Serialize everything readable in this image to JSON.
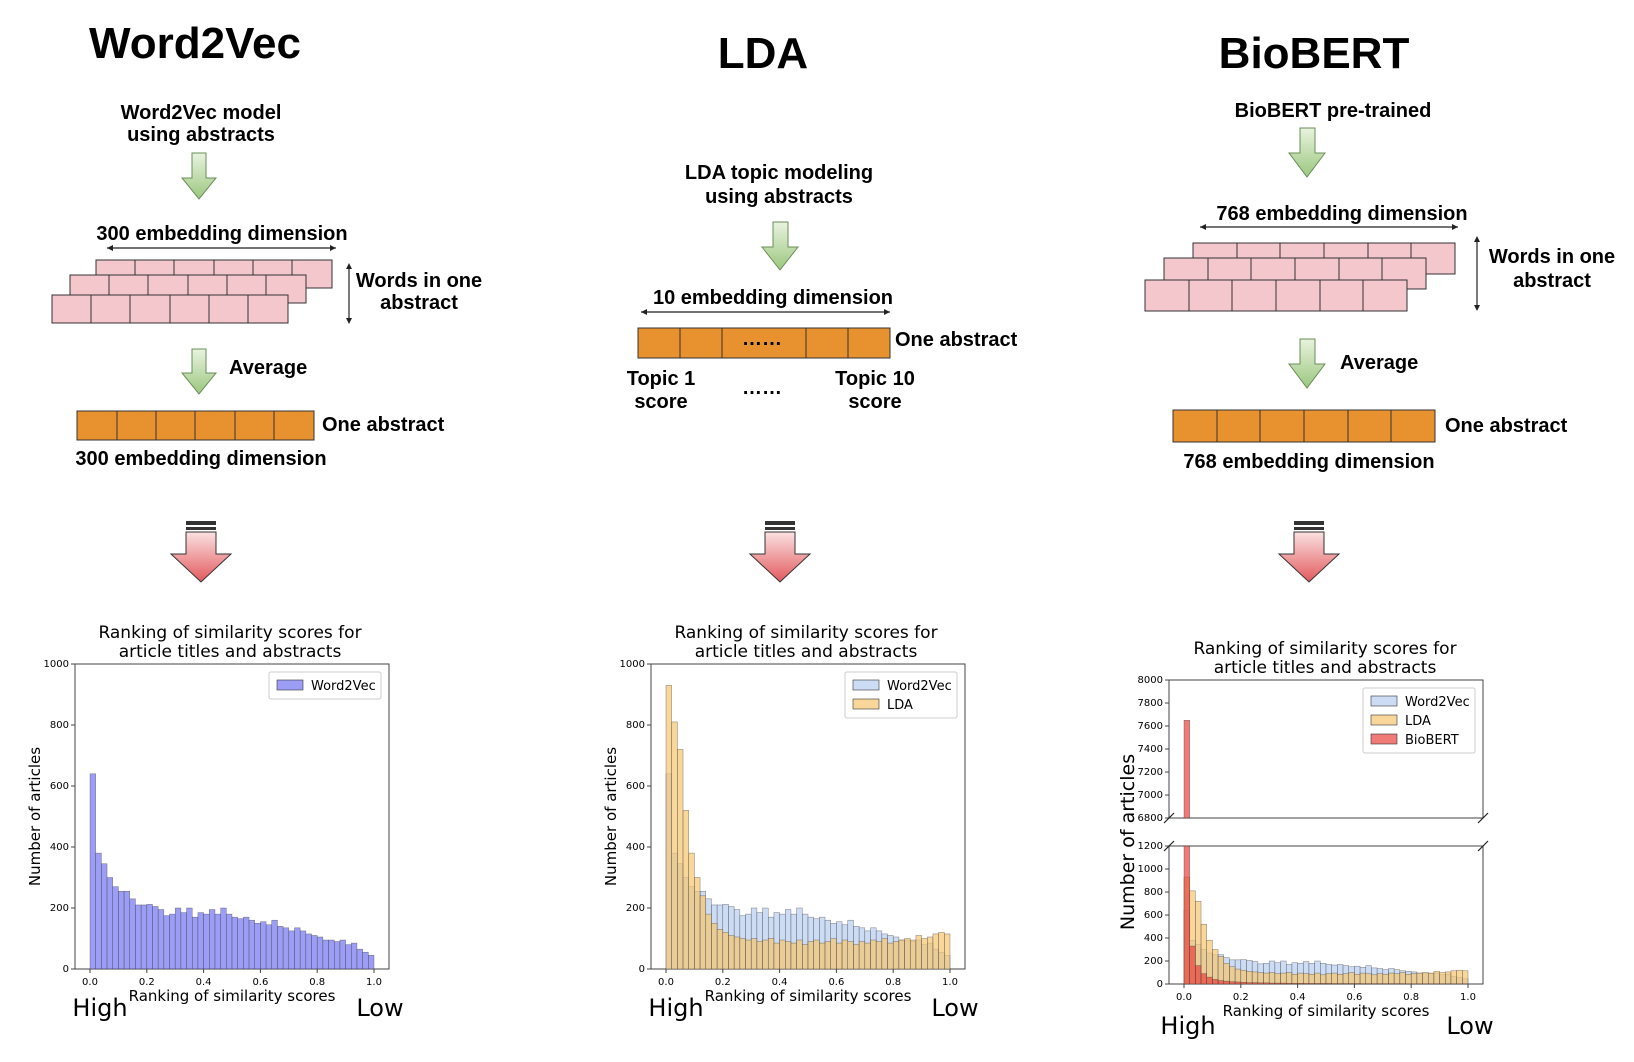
{
  "panels": {
    "word2vec": {
      "title": "Word2Vec",
      "model_line1": "Word2Vec model",
      "model_line2": "using abstracts",
      "dim_label_top": "300 embedding dimension",
      "words_line1": "Words in one",
      "words_line2": "abstract",
      "average": "Average",
      "one_abstract": "One abstract",
      "dim_label_bottom": "300 embedding dimension"
    },
    "lda": {
      "title": "LDA",
      "model_line1": "LDA topic modeling",
      "model_line2": "using abstracts",
      "dim_label": "10 embedding dimension",
      "ellipsis": "……",
      "one_abstract": "One abstract",
      "topic1_line1": "Topic 1",
      "topic1_line2": "score",
      "dots": "……",
      "topic10_line1": "Topic 10",
      "topic10_line2": "score"
    },
    "biobert": {
      "title": "BioBERT",
      "model_line1": "BioBERT pre-trained",
      "dim_label_top": "768 embedding dimension",
      "words_line1": "Words in one",
      "words_line2": "abstract",
      "average": "Average",
      "one_abstract": "One abstract",
      "dim_label_bottom": "768 embedding dimension"
    }
  },
  "colors": {
    "pink_cell": "#f4c7cc",
    "orange_cell": "#e8912f",
    "green_arrow": "#b5d49b",
    "red_arrow": "#e46a6e",
    "word2vec": "#7b7cf0",
    "word2vec_light": "#bcd0f2",
    "lda": "#f6c56f",
    "biobert": "#e8413c"
  },
  "chart_data": [
    {
      "type": "bar",
      "title": "Ranking of similarity scores for article titles and abstracts",
      "title_line1": "Ranking of similarity scores for",
      "title_line2": "article titles and abstracts",
      "xlabel": "Ranking of similarity scores",
      "ylabel": "Number of articles",
      "xlim": [
        0,
        1.0
      ],
      "ylim": [
        0,
        1000
      ],
      "yticks": [
        "0",
        "200",
        "400",
        "600",
        "800",
        "1000"
      ],
      "xticks": [
        "0.0",
        "0.2",
        "0.4",
        "0.6",
        "0.8",
        "1.0"
      ],
      "x_left_note": "High",
      "x_right_note": "Low",
      "legend_position": "top-right",
      "bins": 50,
      "series": [
        {
          "name": "Word2Vec",
          "values": [
            640,
            380,
            345,
            300,
            270,
            255,
            255,
            230,
            210,
            210,
            212,
            205,
            195,
            175,
            180,
            200,
            185,
            200,
            170,
            185,
            180,
            195,
            180,
            200,
            180,
            170,
            165,
            170,
            160,
            150,
            155,
            145,
            160,
            140,
            135,
            125,
            135,
            125,
            115,
            110,
            105,
            95,
            95,
            90,
            95,
            80,
            85,
            65,
            55,
            45
          ]
        }
      ]
    },
    {
      "type": "bar",
      "title": "Ranking of similarity scores for article titles and abstracts",
      "title_line1": "Ranking of similarity scores for",
      "title_line2": "article titles and abstracts",
      "xlabel": "Ranking of similarity scores",
      "ylabel": "Number of articles",
      "xlim": [
        0,
        1.0
      ],
      "ylim": [
        0,
        1000
      ],
      "yticks": [
        "0",
        "200",
        "400",
        "600",
        "800",
        "1000"
      ],
      "xticks": [
        "0.0",
        "0.2",
        "0.4",
        "0.6",
        "0.8",
        "1.0"
      ],
      "x_left_note": "High",
      "x_right_note": "Low",
      "legend_position": "top-right",
      "bins": 50,
      "series": [
        {
          "name": "Word2Vec",
          "values": [
            640,
            380,
            345,
            300,
            270,
            255,
            255,
            230,
            210,
            210,
            212,
            205,
            195,
            175,
            180,
            200,
            185,
            200,
            170,
            185,
            180,
            195,
            180,
            200,
            180,
            170,
            165,
            170,
            160,
            150,
            155,
            145,
            160,
            140,
            135,
            125,
            135,
            125,
            115,
            110,
            105,
            95,
            95,
            90,
            95,
            80,
            85,
            65,
            55,
            45
          ]
        },
        {
          "name": "LDA",
          "values": [
            930,
            810,
            720,
            520,
            380,
            300,
            240,
            180,
            150,
            130,
            120,
            110,
            105,
            100,
            95,
            100,
            90,
            95,
            100,
            85,
            95,
            90,
            85,
            95,
            80,
            90,
            95,
            85,
            90,
            100,
            85,
            95,
            90,
            80,
            90,
            85,
            95,
            90,
            100,
            85,
            90,
            95,
            100,
            95,
            110,
            100,
            105,
            115,
            120,
            115
          ]
        }
      ]
    },
    {
      "type": "bar",
      "title": "Ranking of similarity scores for article titles and abstracts",
      "title_line1": "Ranking of similarity scores for",
      "title_line2": "article titles and abstracts",
      "xlabel": "Ranking of similarity scores",
      "ylabel": "Number of articles",
      "xlim": [
        0,
        1.0
      ],
      "ylim_top": [
        6800,
        8000
      ],
      "ylim_bottom": [
        0,
        1200
      ],
      "yticks_top": [
        "6800",
        "7000",
        "7200",
        "7400",
        "7600",
        "7800",
        "8000"
      ],
      "yticks_bottom": [
        "0",
        "200",
        "400",
        "600",
        "800",
        "1000",
        "1200"
      ],
      "xticks": [
        "0.0",
        "0.2",
        "0.4",
        "0.6",
        "0.8",
        "1.0"
      ],
      "x_left_note": "High",
      "x_right_note": "Low",
      "broken_axis": true,
      "legend_position": "top-right",
      "bins": 50,
      "series": [
        {
          "name": "Word2Vec",
          "values": [
            640,
            380,
            345,
            300,
            270,
            255,
            255,
            230,
            210,
            210,
            212,
            205,
            195,
            175,
            180,
            200,
            185,
            200,
            170,
            185,
            180,
            195,
            180,
            200,
            180,
            170,
            165,
            170,
            160,
            150,
            155,
            145,
            160,
            140,
            135,
            125,
            135,
            125,
            115,
            110,
            105,
            95,
            95,
            90,
            95,
            80,
            85,
            65,
            55,
            45
          ]
        },
        {
          "name": "LDA",
          "values": [
            930,
            810,
            720,
            520,
            380,
            300,
            240,
            180,
            150,
            130,
            120,
            110,
            105,
            100,
            95,
            100,
            90,
            95,
            100,
            85,
            95,
            90,
            85,
            95,
            80,
            90,
            95,
            85,
            90,
            100,
            85,
            95,
            90,
            80,
            90,
            85,
            95,
            90,
            100,
            85,
            90,
            95,
            100,
            95,
            110,
            100,
            105,
            115,
            120,
            115
          ]
        },
        {
          "name": "BioBERT",
          "values": [
            7650,
            330,
            160,
            90,
            60,
            40,
            30,
            25,
            20,
            18,
            15,
            12,
            12,
            10,
            10,
            8,
            8,
            8,
            6,
            6,
            6,
            5,
            5,
            5,
            5,
            5,
            4,
            4,
            4,
            4,
            4,
            3,
            3,
            3,
            3,
            3,
            3,
            3,
            3,
            2,
            2,
            2,
            2,
            2,
            2,
            2,
            2,
            2,
            2,
            2
          ]
        }
      ]
    }
  ]
}
